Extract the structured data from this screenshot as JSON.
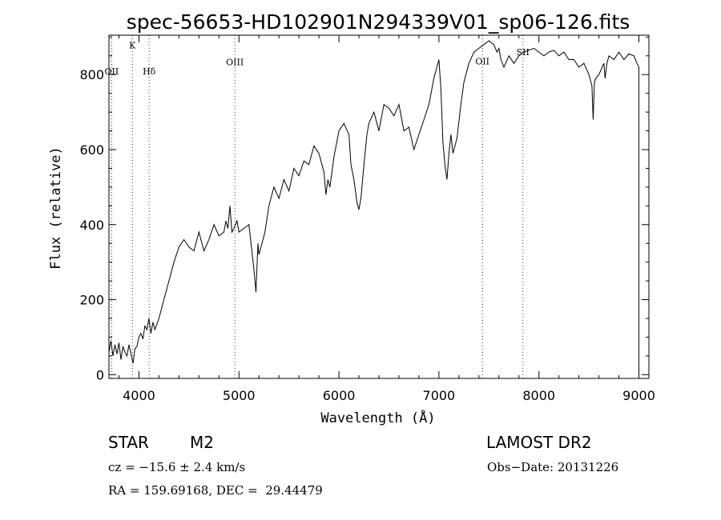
{
  "chart_data": {
    "type": "line",
    "title": "spec-56653-HD102901N294339V01_sp06-126.fits",
    "xlabel": "Wavelength (Å)",
    "ylabel": "Flux (relative)",
    "xlim": [
      3700,
      9100
    ],
    "ylim": [
      -10,
      905
    ],
    "xticks": [
      4000,
      5000,
      6000,
      7000,
      8000,
      9000
    ],
    "yticks": [
      0,
      200,
      400,
      600,
      800
    ],
    "grid": false,
    "series": [
      {
        "x": [
          3700,
          3720,
          3740,
          3760,
          3780,
          3800,
          3820,
          3840,
          3860,
          3880,
          3900,
          3920,
          3940,
          3960,
          3980,
          4000,
          4020,
          4040,
          4060,
          4080,
          4100,
          4120,
          4140,
          4160,
          4180,
          4200,
          4250,
          4300,
          4350,
          4400,
          4450,
          4500,
          4550,
          4600,
          4650,
          4700,
          4750,
          4800,
          4850,
          4870,
          4890,
          4910,
          4930,
          4950,
          4980,
          5000,
          5050,
          5100,
          5150,
          5170,
          5190,
          5200,
          5230,
          5260,
          5300,
          5350,
          5400,
          5450,
          5500,
          5550,
          5600,
          5650,
          5700,
          5750,
          5800,
          5850,
          5870,
          5890,
          5910,
          5950,
          6000,
          6050,
          6100,
          6120,
          6150,
          6180,
          6200,
          6220,
          6250,
          6280,
          6300,
          6350,
          6400,
          6450,
          6500,
          6550,
          6600,
          6650,
          6700,
          6750,
          6800,
          6850,
          6900,
          6950,
          7000,
          7020,
          7040,
          7060,
          7080,
          7100,
          7120,
          7140,
          7180,
          7220,
          7250,
          7300,
          7350,
          7400,
          7450,
          7500,
          7550,
          7580,
          7600,
          7620,
          7650,
          7700,
          7750,
          7800,
          7850,
          7900,
          7950,
          8000,
          8050,
          8100,
          8150,
          8200,
          8250,
          8300,
          8350,
          8400,
          8450,
          8500,
          8530,
          8542,
          8555,
          8570,
          8600,
          8650,
          8662,
          8680,
          8700,
          8750,
          8800,
          8850,
          8900,
          8950,
          8980,
          9000
        ],
        "values": [
          60,
          90,
          50,
          80,
          55,
          85,
          40,
          75,
          60,
          50,
          80,
          55,
          30,
          70,
          75,
          100,
          110,
          95,
          130,
          120,
          150,
          110,
          140,
          120,
          135,
          150,
          200,
          250,
          300,
          340,
          360,
          340,
          330,
          380,
          330,
          360,
          400,
          370,
          380,
          410,
          390,
          450,
          380,
          390,
          410,
          380,
          390,
          400,
          280,
          220,
          350,
          320,
          350,
          380,
          450,
          500,
          470,
          520,
          490,
          550,
          530,
          570,
          560,
          610,
          590,
          540,
          480,
          520,
          500,
          580,
          650,
          670,
          640,
          560,
          520,
          460,
          440,
          470,
          560,
          640,
          670,
          700,
          650,
          720,
          710,
          690,
          720,
          650,
          660,
          600,
          640,
          680,
          720,
          790,
          840,
          760,
          620,
          560,
          520,
          590,
          640,
          590,
          630,
          720,
          780,
          830,
          860,
          870,
          880,
          890,
          880,
          860,
          870,
          840,
          820,
          850,
          830,
          850,
          860,
          865,
          870,
          860,
          850,
          860,
          865,
          850,
          860,
          840,
          840,
          820,
          830,
          800,
          770,
          680,
          780,
          790,
          800,
          830,
          790,
          830,
          850,
          840,
          860,
          840,
          855,
          850,
          830,
          820
        ]
      }
    ],
    "annotations": [
      {
        "label": "OII",
        "x": 3727,
        "y_label": 800
      },
      {
        "label": "K",
        "x": 3934,
        "y_label": 870
      },
      {
        "label": "Hδ",
        "x": 4102,
        "y_label": 800
      },
      {
        "label": "OIII",
        "x": 4959,
        "y_label": 825
      },
      {
        "label": "OII",
        "x": 7435,
        "y_label": 827
      },
      {
        "label": "SII",
        "x": 7840,
        "y_label": 852
      }
    ]
  },
  "info": {
    "object_class": "STAR",
    "subclass": "M2",
    "survey": "LAMOST DR2",
    "cz": "cz = −15.6 ± 2.4 km/s",
    "obs_date": "Obs−Date: 20131226",
    "coords": "RA = 159.69168, DEC =  29.44479"
  }
}
